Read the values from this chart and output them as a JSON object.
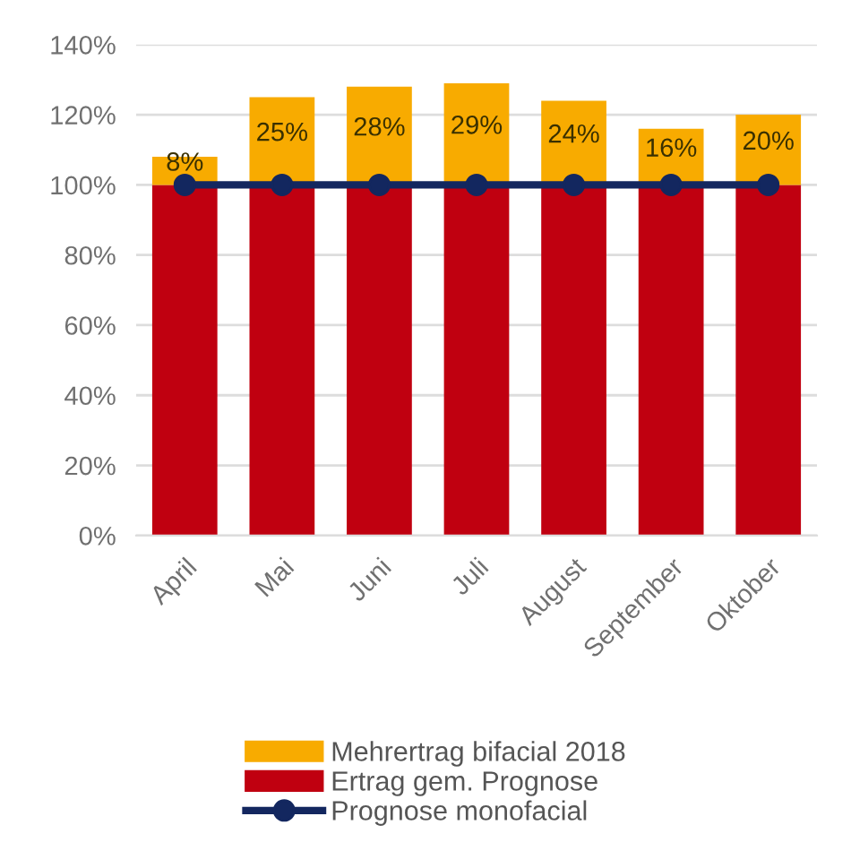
{
  "chart_data": {
    "type": "bar",
    "stacked": true,
    "categories": [
      "April",
      "Mai",
      "Juni",
      "Juli",
      "August",
      "September",
      "Oktober"
    ],
    "series": [
      {
        "name": "Ertrag gem. Prognose",
        "color": "#c00010",
        "values": [
          100,
          100,
          100,
          100,
          100,
          100,
          100
        ]
      },
      {
        "name": "Mehrertrag bifacial 2018",
        "color": "#f8ab00",
        "values": [
          8,
          25,
          28,
          29,
          24,
          16,
          20
        ],
        "value_labels": [
          "8%",
          "25%",
          "28%",
          "29%",
          "24%",
          "16%",
          "20%"
        ]
      },
      {
        "name": "Prognose monofacial",
        "type": "line",
        "color": "#13275f",
        "values": [
          100,
          100,
          100,
          100,
          100,
          100,
          100
        ],
        "marker": "circle",
        "line_style": "solid"
      }
    ],
    "ylim": [
      0,
      140
    ],
    "yticks": [
      {
        "value": 0,
        "label": "0%"
      },
      {
        "value": 20,
        "label": "20%"
      },
      {
        "value": 40,
        "label": "40%"
      },
      {
        "value": 60,
        "label": "60%"
      },
      {
        "value": 80,
        "label": "80%"
      },
      {
        "value": 100,
        "label": "100%"
      },
      {
        "value": 120,
        "label": "120%"
      },
      {
        "value": 140,
        "label": "140%"
      }
    ],
    "grid": "y",
    "legend": "bottom"
  }
}
